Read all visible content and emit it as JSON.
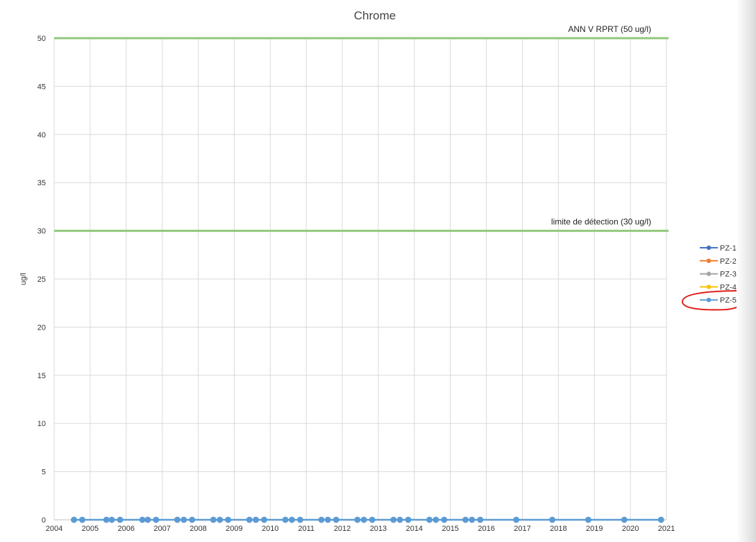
{
  "chart_data": {
    "type": "line",
    "title": "Chrome",
    "ylabel": "ug/l",
    "xlabel": "",
    "xlim": [
      2004,
      2021
    ],
    "ylim": [
      0,
      50
    ],
    "x_ticks": [
      "2004",
      "2005",
      "2006",
      "2007",
      "2008",
      "2009",
      "2010",
      "2011",
      "2012",
      "2013",
      "2014",
      "2015",
      "2016",
      "2017",
      "2018",
      "2019",
      "2020",
      "2021"
    ],
    "y_ticks": [
      "0",
      "5",
      "10",
      "15",
      "20",
      "25",
      "30",
      "35",
      "40",
      "45",
      "50"
    ],
    "grid": true,
    "legend_position": "right",
    "reference_lines": [
      {
        "label": "ANN V RPRT (50 ug/l)",
        "value": 50,
        "color": "#8fc97a"
      },
      {
        "label": "limite de détection (30 ug/l)",
        "value": 30,
        "color": "#8fc97a"
      }
    ],
    "series": [
      {
        "name": "PZ-1",
        "color": "#4472c4"
      },
      {
        "name": "PZ-2",
        "color": "#ed7d31"
      },
      {
        "name": "PZ-3",
        "color": "#a5a5a5"
      },
      {
        "name": "PZ-4",
        "color": "#ffc000"
      },
      {
        "name": "PZ-5",
        "color": "#5b9bd5",
        "x": [
          2004.55,
          2004.78,
          2005.45,
          2005.6,
          2005.83,
          2006.45,
          2006.6,
          2006.83,
          2007.42,
          2007.6,
          2007.83,
          2008.42,
          2008.6,
          2008.83,
          2009.42,
          2009.6,
          2009.83,
          2010.42,
          2010.6,
          2010.83,
          2011.42,
          2011.6,
          2011.83,
          2012.42,
          2012.6,
          2012.83,
          2013.42,
          2013.6,
          2013.83,
          2014.42,
          2014.6,
          2014.83,
          2015.42,
          2015.6,
          2015.83,
          2016.83,
          2017.83,
          2018.83,
          2019.83,
          2020.85
        ],
        "values": [
          0,
          0,
          0,
          0,
          0,
          0,
          0,
          0,
          0,
          0,
          0,
          0,
          0,
          0,
          0,
          0,
          0,
          0,
          0,
          0,
          0,
          0,
          0,
          0,
          0,
          0,
          0,
          0,
          0,
          0,
          0,
          0,
          0,
          0,
          0,
          0,
          0,
          0,
          0,
          0
        ]
      }
    ],
    "annotation": {
      "target_series": "PZ-5",
      "shape": "ellipse",
      "color": "#e0201b"
    }
  }
}
